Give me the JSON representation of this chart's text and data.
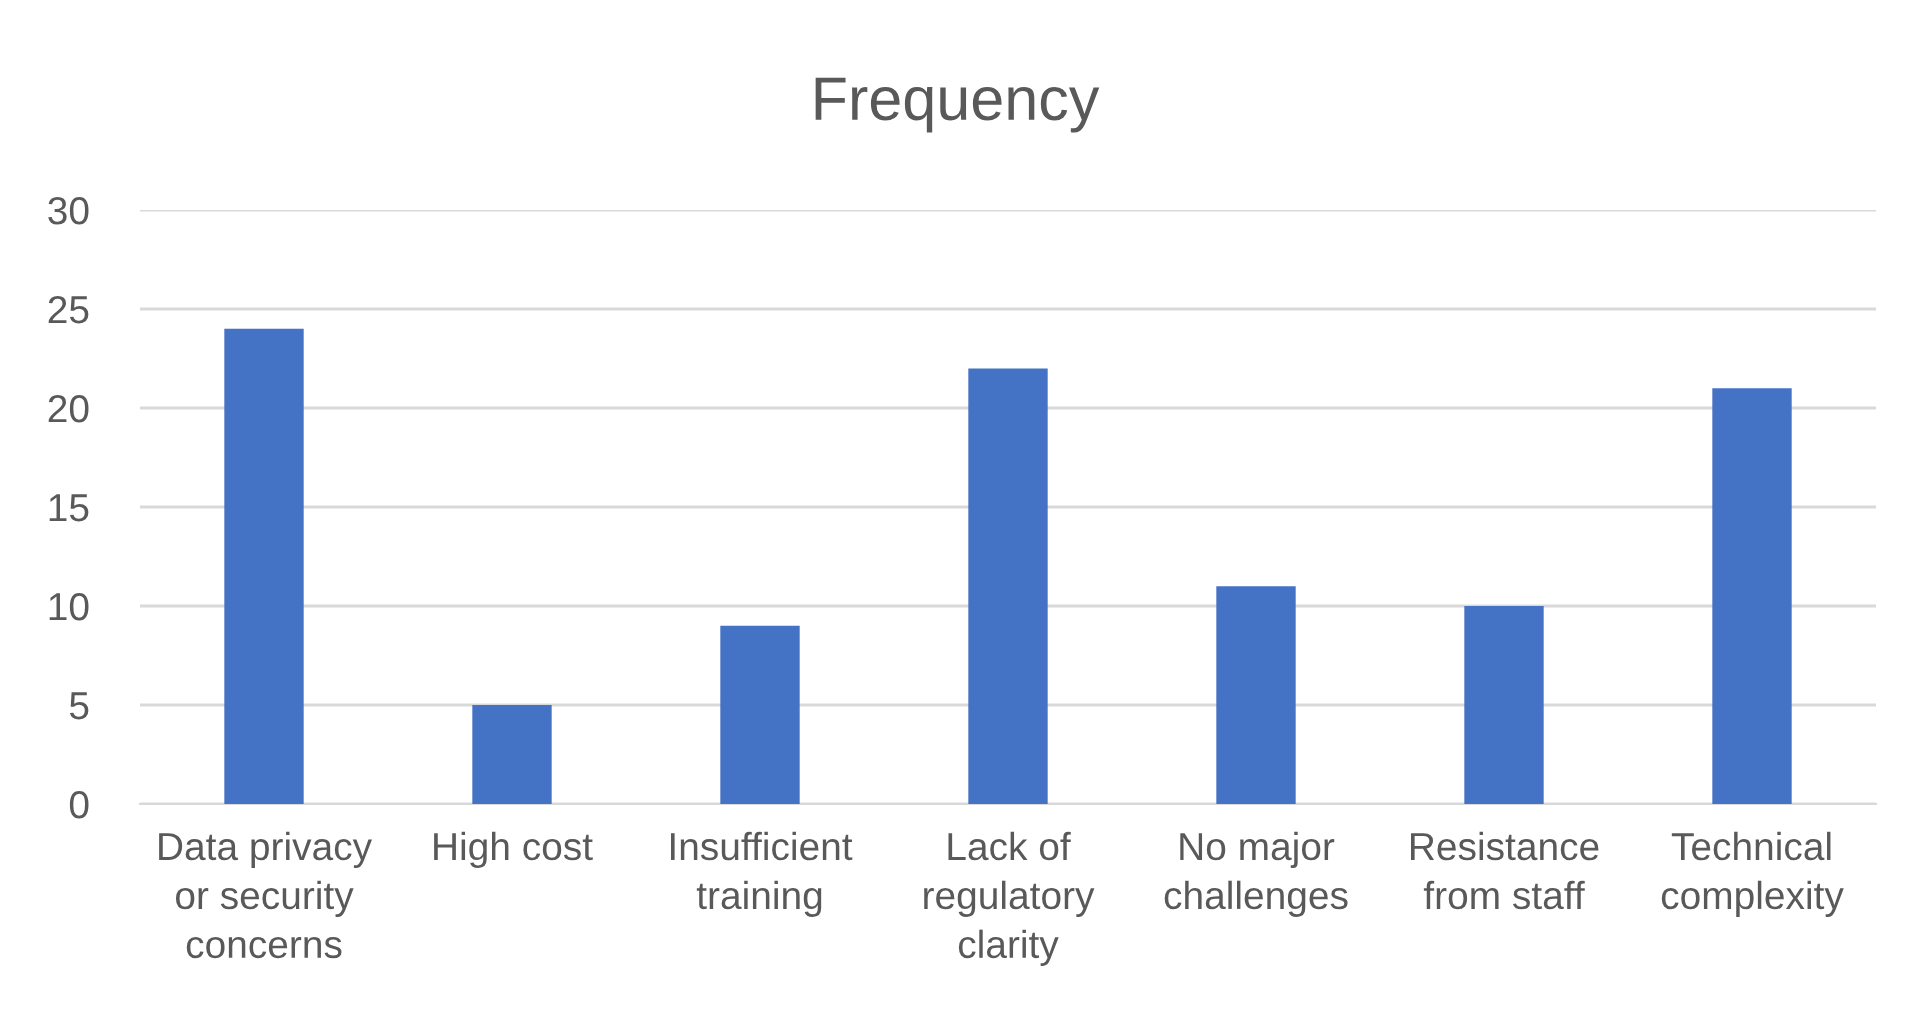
{
  "chart_data": {
    "type": "bar",
    "title": "Frequency",
    "categories": [
      "Data privacy or security concerns",
      "High cost",
      "Insufficient training",
      "Lack of regulatory clarity",
      "No major challenges",
      "Resistance from staff",
      "Technical complexity"
    ],
    "values": [
      24,
      5,
      9,
      22,
      11,
      10,
      21
    ],
    "color": "#4472c4",
    "ylim": [
      0,
      30
    ],
    "yticks": [
      0,
      5,
      10,
      15,
      20,
      25,
      30
    ],
    "grid": "y",
    "legend": false
  }
}
